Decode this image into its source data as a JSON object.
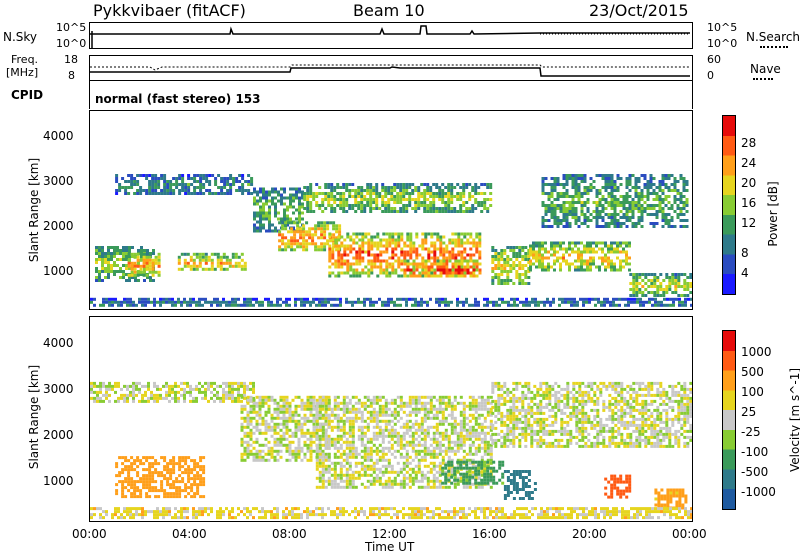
{
  "header": {
    "radar": "Pykkvibaer (fitACF)",
    "beam": "Beam 10",
    "date": "23/Oct/2015"
  },
  "noise_panel": {
    "left_label": "N.Sky",
    "right_label": "N.Search",
    "left_ticks": [
      "10^5",
      "10^0"
    ],
    "right_ticks": [
      "10^5",
      "10^0"
    ]
  },
  "freq_panel": {
    "left_label_line1": "Freq.",
    "left_label_line2": "[MHz]",
    "left_ticks": [
      "18",
      "8"
    ],
    "right_label": "Nave",
    "right_ticks": [
      "60",
      "0"
    ]
  },
  "cpid_panel": {
    "label": "CPID",
    "text": "normal (fast stereo) 153"
  },
  "x_axis": {
    "label": "Time UT",
    "ticks": [
      "00:00",
      "04:00",
      "08:00",
      "12:00",
      "16:00",
      "20:00",
      "00:00"
    ]
  },
  "chart_data": [
    {
      "type": "heatmap",
      "title": "",
      "quantity": "Power",
      "ylabel": "Slant Range [km]",
      "yticks": [
        "4000",
        "3000",
        "2000",
        "1000"
      ],
      "ylim": [
        200,
        4600
      ],
      "xlim_hours": [
        0,
        24
      ],
      "colorbar_label": "Power [dB]",
      "colorbar_ticks": [
        "28",
        "24",
        "20",
        "16",
        "12",
        "8",
        "4"
      ],
      "colorbar_colors": [
        "#1a1aff",
        "#2a4cc0",
        "#2e7a8a",
        "#3a9a5a",
        "#88cc33",
        "#e6d51f",
        "#ff9f1a",
        "#ff5a14",
        "#e60b0b"
      ],
      "bands": [
        {
          "x": [
            0.2,
            2.5
          ],
          "range": [
            850,
            1600
          ],
          "level": 0.55
        },
        {
          "x": [
            1.5,
            2.8
          ],
          "range": [
            950,
            1450
          ],
          "level": 0.8
        },
        {
          "x": [
            3.5,
            6.2
          ],
          "range": [
            1050,
            1450
          ],
          "level": 0.7
        },
        {
          "x": [
            1.0,
            6.5
          ],
          "range": [
            2750,
            3200
          ],
          "level": 0.35
        },
        {
          "x": [
            6.5,
            8.5
          ],
          "range": [
            1950,
            2900
          ],
          "level": 0.45
        },
        {
          "x": [
            7.5,
            10.0
          ],
          "range": [
            1500,
            2150
          ],
          "level": 0.8
        },
        {
          "x": [
            8.5,
            16.0
          ],
          "range": [
            2350,
            3000
          ],
          "level": 0.55
        },
        {
          "x": [
            9.5,
            15.5
          ],
          "range": [
            950,
            1900
          ],
          "level": 0.85
        },
        {
          "x": [
            12.5,
            15.5
          ],
          "range": [
            900,
            1300
          ],
          "level": 0.95
        },
        {
          "x": [
            16.0,
            17.5
          ],
          "range": [
            750,
            1600
          ],
          "level": 0.65
        },
        {
          "x": [
            17.5,
            21.5
          ],
          "range": [
            1050,
            1700
          ],
          "level": 0.7
        },
        {
          "x": [
            18.0,
            23.8
          ],
          "range": [
            2000,
            3200
          ],
          "level": 0.45
        },
        {
          "x": [
            21.5,
            23.9
          ],
          "range": [
            500,
            1000
          ],
          "level": 0.6
        },
        {
          "x": [
            0.0,
            24.0
          ],
          "range": [
            250,
            450
          ],
          "level": 0.3
        }
      ]
    },
    {
      "type": "heatmap",
      "title": "",
      "quantity": "Velocity",
      "ylabel": "Slant Range [km]",
      "yticks": [
        "4000",
        "3000",
        "2000",
        "1000"
      ],
      "ylim": [
        200,
        4600
      ],
      "xlim_hours": [
        0,
        24
      ],
      "colorbar_label": "Velocity [m s^-1]",
      "colorbar_ticks": [
        "1000",
        "500",
        "100",
        "25",
        "-25",
        "-100",
        "-500",
        "-1000"
      ],
      "colorbar_colors": [
        "#1e5aa0",
        "#2e7a8a",
        "#3a9a5a",
        "#88cc33",
        "#c8c8c8",
        "#e6d51f",
        "#ff9f1a",
        "#ff5a14",
        "#e60b0b"
      ],
      "bands": [
        {
          "x": [
            0.0,
            6.5
          ],
          "range": [
            2800,
            3200
          ],
          "v": 0
        },
        {
          "x": [
            6.0,
            9.5
          ],
          "range": [
            1500,
            2900
          ],
          "v": 0
        },
        {
          "x": [
            9.0,
            16.0
          ],
          "range": [
            900,
            2900
          ],
          "v": 0
        },
        {
          "x": [
            16.0,
            24.0
          ],
          "range": [
            1800,
            3200
          ],
          "v": 0
        },
        {
          "x": [
            1.0,
            4.5
          ],
          "range": [
            700,
            1600
          ],
          "v": -300
        },
        {
          "x": [
            14.0,
            16.5
          ],
          "range": [
            1000,
            1500
          ],
          "v": 150
        },
        {
          "x": [
            16.5,
            17.8
          ],
          "range": [
            700,
            1300
          ],
          "v": 600
        },
        {
          "x": [
            20.5,
            21.5
          ],
          "range": [
            700,
            1200
          ],
          "v": -600
        },
        {
          "x": [
            22.5,
            23.8
          ],
          "range": [
            500,
            900
          ],
          "v": -150
        },
        {
          "x": [
            0.0,
            24.0
          ],
          "range": [
            250,
            500
          ],
          "v": -50
        }
      ]
    }
  ]
}
